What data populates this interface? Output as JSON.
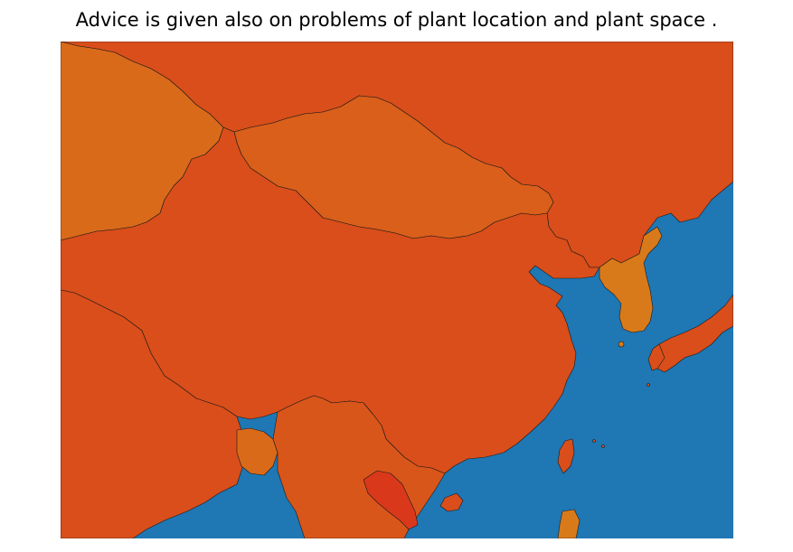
{
  "title": "Advice is given also on problems of plant location and plant space .",
  "map": {
    "region": "East Asia",
    "colors": {
      "sea": "#1f77b4",
      "china": "#d94e1a",
      "russia": "#d94e1a",
      "mongolia": "#d95f1a",
      "kazakhstan_central_asia": "#d96a1a",
      "south_asia": "#d94e1a",
      "myanmar_indochina": "#d9561a",
      "laos": "#d9381a",
      "korea": "#d97a1a",
      "japan": "#d94e1a",
      "taiwan": "#d94e1a",
      "bangladesh": "#d96a1a",
      "philippines": "#d97a1a"
    }
  }
}
